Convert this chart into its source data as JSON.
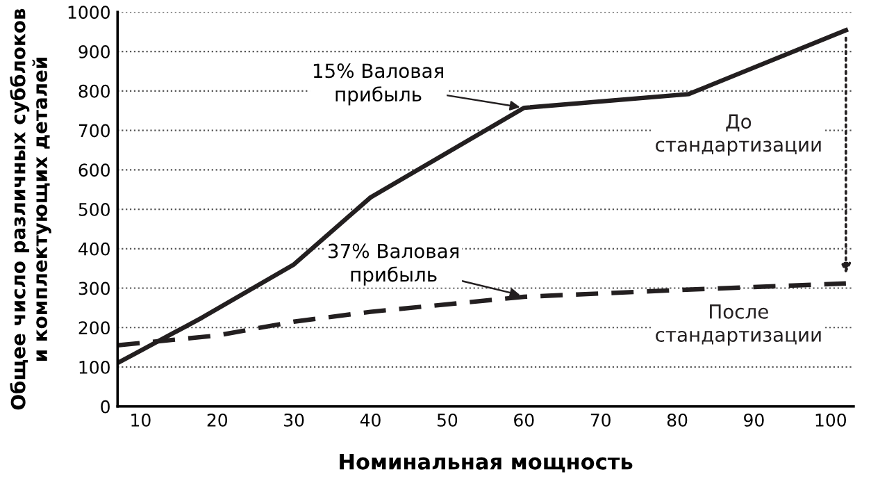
{
  "chart_data": {
    "type": "line",
    "xlabel": "Номинальная мощность",
    "ylabel": "Общее число различных субблоков\nи комплектующих деталей",
    "series": [
      {
        "name": "До\nстандартизации",
        "color": "#231f20",
        "x": [
          7,
          18,
          30,
          40,
          60,
          81.5,
          102
        ],
        "values": [
          110,
          225,
          360,
          530,
          757,
          792,
          954
        ],
        "line_style": "solid"
      },
      {
        "name": "После\nстандартизации",
        "color": "#231f20",
        "x": [
          7,
          20,
          30,
          40,
          60,
          80,
          102
        ],
        "values": [
          155,
          180,
          215,
          240,
          278,
          295,
          312
        ],
        "line_style": "dashed"
      }
    ],
    "annotations": [
      {
        "text": "15% Валовая\nприбыль",
        "x": 60,
        "y": 757
      },
      {
        "text": "37% Валовая\nприбыль",
        "x": 60,
        "y": 280
      }
    ],
    "xlim": [
      7,
      103
    ],
    "xticks": [
      10,
      20,
      30,
      40,
      50,
      60,
      70,
      80,
      90,
      100
    ],
    "ylim": [
      0,
      1000
    ],
    "yticks": [
      0,
      100,
      200,
      300,
      400,
      500,
      600,
      700,
      800,
      900,
      1000
    ],
    "grid": "y",
    "marker": "none",
    "legend": false
  }
}
